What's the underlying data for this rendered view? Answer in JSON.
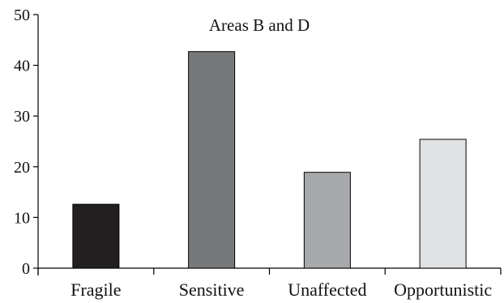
{
  "chart_data": {
    "type": "bar",
    "title": "Areas B and D",
    "xlabel": "",
    "ylabel": "",
    "categories": [
      "Fragile",
      "Sensitive",
      "Unaffected",
      "Opportunistic"
    ],
    "values": [
      12.6,
      42.7,
      18.9,
      25.4
    ],
    "colors": [
      "#231f20",
      "#77787b",
      "#a7a9ac",
      "#e1e2e3"
    ],
    "ylim": [
      0,
      50
    ],
    "yticks": [
      0,
      10,
      20,
      30,
      40,
      50
    ],
    "grid": false,
    "legend": "none"
  }
}
